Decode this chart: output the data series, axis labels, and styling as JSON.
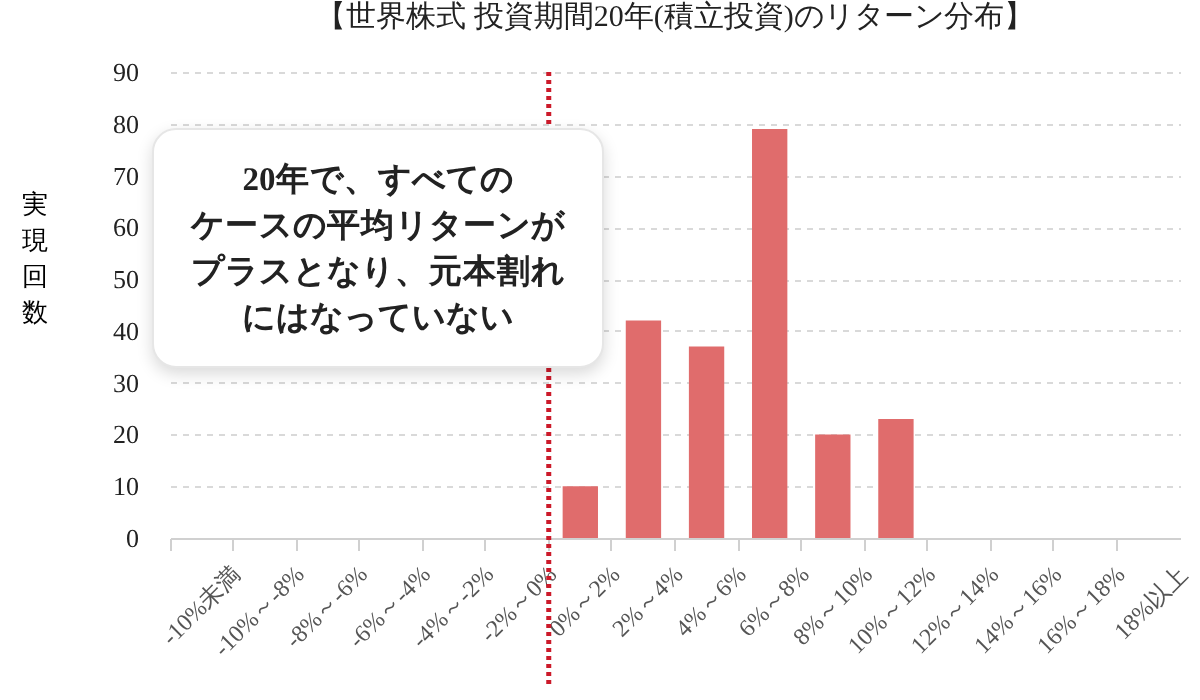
{
  "chart_data": {
    "type": "bar",
    "title": "【世界株式 投資期間20年(積立投資)のリターン分布】",
    "ylabel": "実現回数",
    "categories": [
      "-10%未満",
      "-10%～-8%",
      "-8%～-6%",
      "-6%～-4%",
      "-4%～-2%",
      "-2%～0%",
      "0%～2%",
      "2%～4%",
      "4%～6%",
      "6%～8%",
      "8%～10%",
      "10%～12%",
      "12%～14%",
      "14%～16%",
      "16%～18%",
      "18%以上"
    ],
    "values": [
      0,
      0,
      0,
      0,
      0,
      0,
      10,
      42,
      37,
      79,
      20,
      23,
      0,
      0,
      0,
      0
    ],
    "color": "#e06c6c",
    "ylim": [
      0,
      90
    ],
    "yticks": [
      0,
      10,
      20,
      30,
      40,
      50,
      60,
      70,
      80,
      90
    ],
    "grid": "y",
    "ref_lines": [
      {
        "axis": "x",
        "value": "0%～2%",
        "color": "#cc1a2a",
        "line_style": "dotted"
      }
    ],
    "annotations": [
      "20年で、すべての",
      "ケースの平均リターンが",
      "プラスとなり、元本割れ",
      "にはなっていない"
    ]
  }
}
